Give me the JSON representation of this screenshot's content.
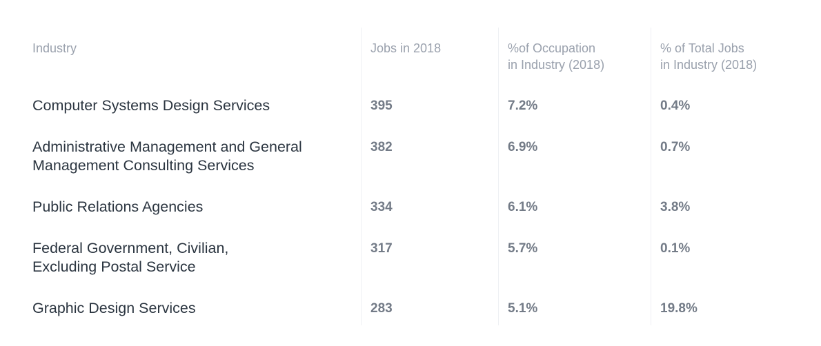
{
  "chart_data": {
    "type": "table",
    "columns": [
      "Industry",
      "Jobs in 2018",
      "%of Occupation\nin Industry (2018)",
      "% of Total Jobs\nin Industry (2018)"
    ],
    "rows": [
      {
        "industry": "Computer Systems Design Services",
        "jobs": "395",
        "pct_occupation": "7.2%",
        "pct_total": "0.4%"
      },
      {
        "industry": "Administrative Management and General\nManagement Consulting Services",
        "jobs": "382",
        "pct_occupation": "6.9%",
        "pct_total": "0.7%"
      },
      {
        "industry": "Public Relations Agencies",
        "jobs": "334",
        "pct_occupation": "6.1%",
        "pct_total": "3.8%"
      },
      {
        "industry": "Federal Government, Civilian,\nExcluding Postal Service",
        "jobs": "317",
        "pct_occupation": "5.7%",
        "pct_total": "0.1%"
      },
      {
        "industry": "Graphic Design Services",
        "jobs": "283",
        "pct_occupation": "5.1%",
        "pct_total": "19.8%"
      }
    ]
  }
}
